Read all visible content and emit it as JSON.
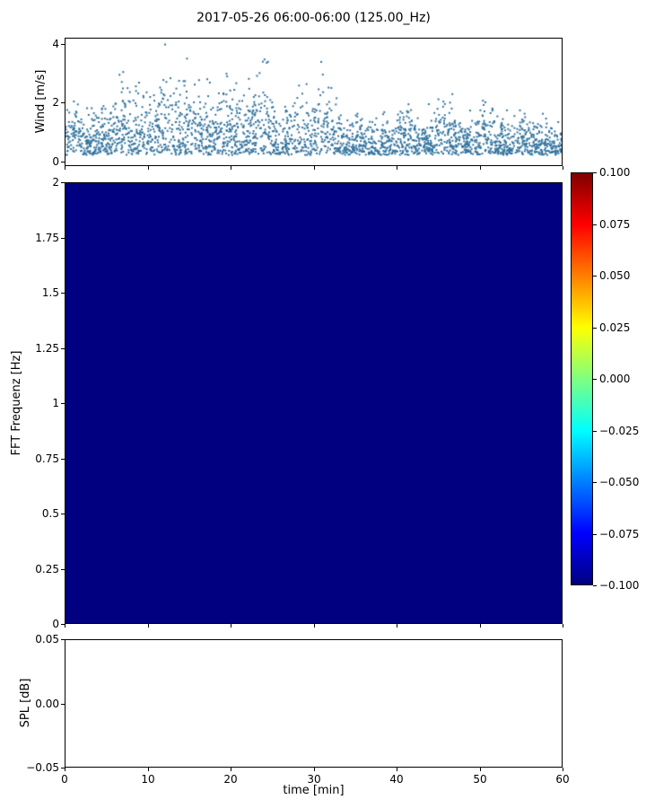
{
  "figure": {
    "title": "2017-05-26 06:00-06:00 (125.00_Hz)"
  },
  "chart_data": [
    {
      "type": "scatter",
      "id": "wind",
      "title": "2017-05-26 06:00-06:00 (125.00_Hz)",
      "ylabel": "Wind [m/s]",
      "xlim": [
        0,
        60
      ],
      "ylim": [
        -0.15,
        4.2
      ],
      "yticks": [
        0,
        2,
        4
      ],
      "ytick_labels": [
        "0",
        "2",
        "4"
      ],
      "xticks": [
        0,
        10,
        20,
        30,
        40,
        50,
        60
      ],
      "marker_color": "#33749f",
      "marker_size_px": 2,
      "n_points": 2600,
      "seed": 20170526,
      "envelope_x": [
        0,
        1,
        3,
        5,
        7,
        9,
        11,
        12,
        14,
        16,
        17,
        19,
        21,
        23,
        24,
        26,
        28,
        30,
        31,
        33,
        35,
        38,
        41,
        43,
        46,
        48,
        50,
        52,
        54,
        56,
        58,
        60
      ],
      "envelope_y": [
        1.7,
        2.2,
        1.6,
        2.0,
        3.4,
        2.5,
        3.6,
        4.0,
        3.7,
        2.6,
        3.0,
        2.9,
        2.4,
        3.0,
        3.8,
        2.1,
        2.8,
        2.2,
        3.3,
        1.9,
        1.6,
        1.5,
        2.2,
        1.5,
        2.4,
        1.6,
        1.9,
        1.8,
        1.5,
        1.8,
        1.3,
        1.3
      ]
    },
    {
      "type": "heatmap",
      "id": "fft",
      "ylabel": "FFT Frequenz [Hz]",
      "xlim": [
        0,
        60
      ],
      "ylim": [
        0,
        2
      ],
      "yticks": [
        0,
        0.25,
        0.5,
        0.75,
        1,
        1.25,
        1.5,
        1.75,
        2
      ],
      "ytick_labels": [
        "0",
        "0.25",
        "0.5",
        "0.75",
        "1",
        "1.25",
        "1.5",
        "1.75",
        "2"
      ],
      "xticks": [
        0,
        10,
        20,
        30,
        40,
        50,
        60
      ],
      "uniform_value": -0.1,
      "fill_color": "#000080",
      "colorbar": {
        "cmap": "jet",
        "vmin": -0.1,
        "vmax": 0.1,
        "tick_values": [
          0.1,
          0.075,
          0.05,
          0.025,
          0,
          -0.025,
          -0.05,
          -0.075,
          -0.1
        ],
        "tick_labels": [
          "0.100",
          "0.075",
          "0.050",
          "0.025",
          "0.000",
          "−0.025",
          "−0.050",
          "−0.075",
          "−0.100"
        ],
        "gradient_colors_top_to_bottom": [
          "#800000",
          "#ff0000",
          "#ffff00",
          "#00ffff",
          "#0000ff",
          "#000080"
        ],
        "gradient_stops_pct": [
          0,
          12.5,
          37.5,
          62.5,
          87.5,
          100
        ]
      }
    },
    {
      "type": "line",
      "id": "spl",
      "ylabel": "SPL [dB]",
      "xlabel": "time [min]",
      "xlim": [
        0,
        60
      ],
      "ylim": [
        -0.05,
        0.05
      ],
      "yticks": [
        0.05,
        0,
        -0.05
      ],
      "ytick_labels": [
        "0.05",
        "0.00",
        "−0.05"
      ],
      "xticks": [
        0,
        10,
        20,
        30,
        40,
        50,
        60
      ],
      "xtick_labels": [
        "0",
        "10",
        "20",
        "30",
        "40",
        "50",
        "60"
      ],
      "series": []
    }
  ]
}
